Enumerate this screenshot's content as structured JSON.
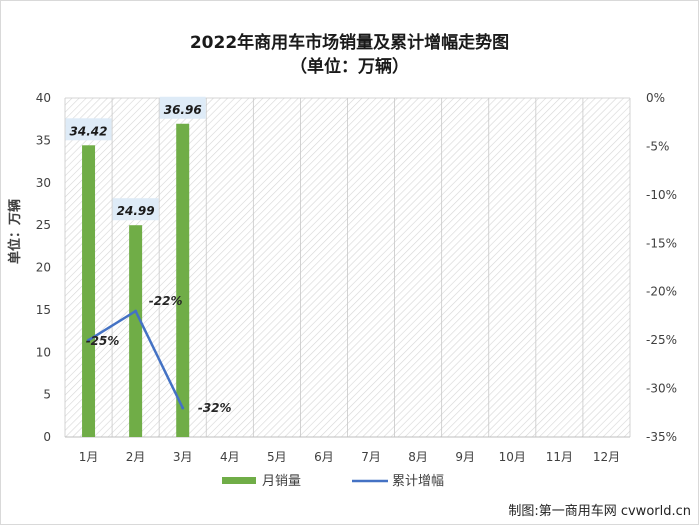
{
  "titles": {
    "line1": "2022年商用车市场销量及累计增幅走势图",
    "line2": "（单位：万辆）"
  },
  "credit": "制图:第一商用车网 cvworld.cn",
  "chart_data": {
    "type": "bar",
    "categories": [
      "1月",
      "2月",
      "3月",
      "4月",
      "5月",
      "6月",
      "7月",
      "8月",
      "9月",
      "10月",
      "11月",
      "12月"
    ],
    "series": [
      {
        "name": "月销量",
        "kind": "bar",
        "axis": "left",
        "color": "#70ad47",
        "values": [
          34.42,
          24.99,
          36.96,
          null,
          null,
          null,
          null,
          null,
          null,
          null,
          null,
          null
        ],
        "labels": [
          "34.42",
          "24.99",
          "36.96"
        ]
      },
      {
        "name": "累计增幅",
        "kind": "line",
        "axis": "right",
        "color": "#4472c4",
        "values": [
          -25,
          -22,
          -32,
          null,
          null,
          null,
          null,
          null,
          null,
          null,
          null,
          null
        ],
        "labels": [
          "-25%",
          "-22%",
          "-32%"
        ]
      }
    ],
    "ylabel": "单位：万辆",
    "ylim": [
      0,
      40
    ],
    "yticks": [
      "0",
      "5",
      "10",
      "15",
      "20",
      "25",
      "30",
      "35",
      "40"
    ],
    "y2lim": [
      -35,
      0
    ],
    "y2ticks": [
      "-35%",
      "-30%",
      "-25%",
      "-20%",
      "-15%",
      "-10%",
      "-5%",
      "0%"
    ],
    "legend_position": "bottom",
    "background": "hatched"
  }
}
